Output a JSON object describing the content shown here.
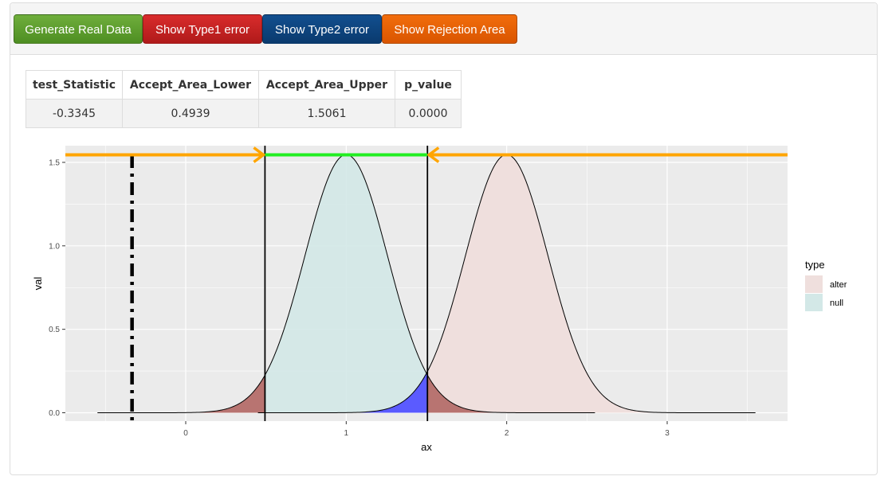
{
  "toolbar": {
    "generate_label": "Generate Real Data",
    "type1_label": "Show Type1 error",
    "type2_label": "Show Type2 error",
    "rejection_label": "Show Rejection Area"
  },
  "stats_table": {
    "headers": [
      "test_Statistic",
      "Accept_Area_Lower",
      "Accept_Area_Upper",
      "p_value"
    ],
    "row": [
      "-0.3345",
      "0.4939",
      "1.5061",
      "0.0000"
    ]
  },
  "chart_data": {
    "type": "area",
    "xlabel": "ax",
    "ylabel": "val",
    "x_ticks": [
      "0",
      "1",
      "2",
      "3"
    ],
    "y_ticks": [
      "0.0",
      "0.5",
      "1.0",
      "1.5"
    ],
    "xlim": [
      -0.75,
      3.75
    ],
    "ylim": [
      -0.05,
      1.6
    ],
    "grid": true,
    "legend_position": "right",
    "legend_title": "type",
    "series": [
      {
        "name": "alter",
        "distribution": "normal",
        "mean": 2,
        "sd": 0.258,
        "x_range": [
          0.45,
          3.55
        ],
        "fill": "#efdfdd"
      },
      {
        "name": "null",
        "distribution": "normal",
        "mean": 1,
        "sd": 0.258,
        "x_range": [
          -0.55,
          2.55
        ],
        "fill": "#d3e8e7"
      }
    ],
    "test_statistic": -0.3345,
    "accept_lower": 0.4939,
    "accept_upper": 1.5061,
    "highlights": {
      "type1_fill": "#b87471",
      "type2_fill": "#5b5bff",
      "accept_line": "#22ee22",
      "arrow_color": "#ffa500"
    }
  }
}
